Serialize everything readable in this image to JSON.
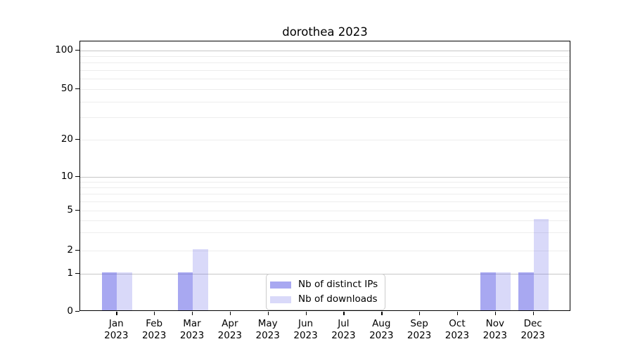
{
  "title": "dorothea 2023",
  "chart_data": {
    "type": "bar",
    "title": "dorothea 2023",
    "categories": [
      "Jan 2023",
      "Feb 2023",
      "Mar 2023",
      "Apr 2023",
      "May 2023",
      "Jun 2023",
      "Jul 2023",
      "Aug 2023",
      "Sep 2023",
      "Oct 2023",
      "Nov 2023",
      "Dec 2023"
    ],
    "series": [
      {
        "name": "Nb of distinct IPs",
        "color": "#a8a8f5",
        "fill": "rgba(102,102,230,0.57)",
        "values": [
          1,
          0,
          1,
          0,
          0,
          0,
          0,
          0,
          0,
          0,
          1,
          1
        ]
      },
      {
        "name": "Nb of downloads",
        "color": "#d9d9f8",
        "fill": "rgba(102,102,230,0.25)",
        "values": [
          1,
          0,
          2,
          0,
          0,
          0,
          0,
          0,
          0,
          0,
          1,
          4
        ]
      }
    ],
    "xlabel": "",
    "ylabel": "",
    "yscale": "symlog",
    "ylim": [
      0,
      115
    ],
    "y_ticks": [
      100,
      50,
      20,
      10,
      5,
      2,
      1,
      0
    ],
    "y_minor_gridlines": [
      2,
      3,
      4,
      5,
      6,
      7,
      8,
      9,
      20,
      30,
      40,
      50,
      60,
      70,
      80,
      90
    ],
    "y_major_gridlines": [
      1,
      10,
      100
    ],
    "grid": "horizontal",
    "legend_position": "lower center",
    "grid_major_color": "#c6c6c6",
    "grid_minor_color": "#ededed"
  }
}
